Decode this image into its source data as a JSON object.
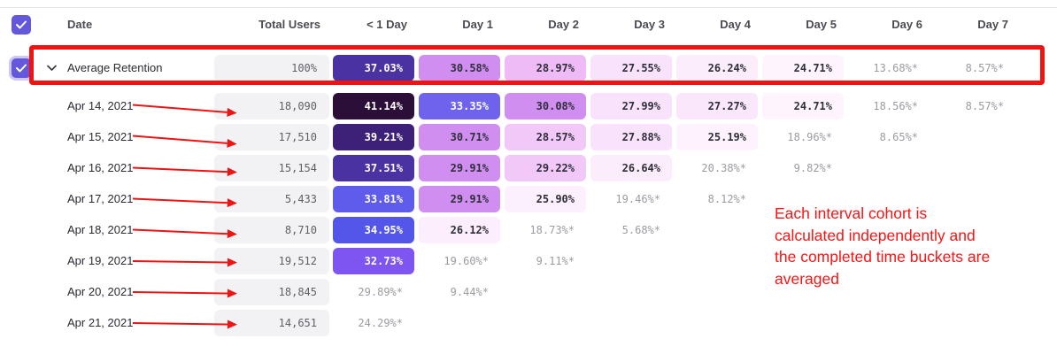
{
  "colors": {
    "accent_purple": "#6358dc",
    "annotation_red": "#ee1414",
    "total_cell_bg": "#f2f2f4"
  },
  "table": {
    "headers": [
      "Date",
      "Total Users",
      "< 1 Day",
      "Day 1",
      "Day 2",
      "Day 3",
      "Day 4",
      "Day 5",
      "Day 6",
      "Day 7"
    ],
    "average_row": {
      "label": "Average Retention",
      "total": "100%",
      "cells": [
        {
          "v": "37.03%",
          "bg": "#4a32a2",
          "t": "light"
        },
        {
          "v": "30.58%",
          "bg": "#d18ef1",
          "t": "dark"
        },
        {
          "v": "28.97%",
          "bg": "#eebbf7",
          "t": "dark"
        },
        {
          "v": "27.55%",
          "bg": "#f9e2fb",
          "t": "dark"
        },
        {
          "v": "26.24%",
          "bg": "#fcedfd",
          "t": "dark"
        },
        {
          "v": "24.71%",
          "bg": "#fdf4fe",
          "t": "dark"
        },
        {
          "v": "13.68%*",
          "t": "gray"
        },
        {
          "v": "8.57%*",
          "t": "gray"
        }
      ]
    },
    "rows": [
      {
        "date": "Apr 14, 2021",
        "total": "18,090",
        "cells": [
          {
            "v": "41.14%",
            "bg": "#2b0f38",
            "t": "light"
          },
          {
            "v": "33.35%",
            "bg": "#6f63ee",
            "t": "light"
          },
          {
            "v": "30.08%",
            "bg": "#d18ef1",
            "t": "dark"
          },
          {
            "v": "27.99%",
            "bg": "#f9e2fb",
            "t": "dark"
          },
          {
            "v": "27.27%",
            "bg": "#fae7fc",
            "t": "dark"
          },
          {
            "v": "24.71%",
            "bg": "#fdf4fe",
            "t": "dark"
          },
          {
            "v": "18.56%*",
            "t": "gray"
          },
          {
            "v": "8.57%*",
            "t": "gray"
          }
        ]
      },
      {
        "date": "Apr 15, 2021",
        "total": "17,510",
        "cells": [
          {
            "v": "39.21%",
            "bg": "#3d2078",
            "t": "light"
          },
          {
            "v": "30.71%",
            "bg": "#d18ef1",
            "t": "dark"
          },
          {
            "v": "28.57%",
            "bg": "#f2c8f9",
            "t": "dark"
          },
          {
            "v": "27.88%",
            "bg": "#f9e2fb",
            "t": "dark"
          },
          {
            "v": "25.19%",
            "bg": "#fdf2fe",
            "t": "dark"
          },
          {
            "v": "18.96%*",
            "t": "gray"
          },
          {
            "v": "8.65%*",
            "t": "gray"
          },
          null
        ]
      },
      {
        "date": "Apr 16, 2021",
        "total": "15,154",
        "cells": [
          {
            "v": "37.51%",
            "bg": "#4a32a2",
            "t": "light"
          },
          {
            "v": "29.91%",
            "bg": "#d18ef1",
            "t": "dark"
          },
          {
            "v": "29.22%",
            "bg": "#f2c8f9",
            "t": "dark"
          },
          {
            "v": "26.64%",
            "bg": "#fcedfd",
            "t": "dark"
          },
          {
            "v": "20.38%*",
            "t": "gray"
          },
          {
            "v": "9.82%*",
            "t": "gray"
          },
          null,
          null
        ]
      },
      {
        "date": "Apr 17, 2021",
        "total": "5,433",
        "cells": [
          {
            "v": "33.81%",
            "bg": "#5f5ceb",
            "t": "light"
          },
          {
            "v": "29.91%",
            "bg": "#d18ef1",
            "t": "dark"
          },
          {
            "v": "25.90%",
            "bg": "#fdf0fe",
            "t": "dark"
          },
          {
            "v": "19.46%*",
            "t": "gray"
          },
          {
            "v": "8.12%*",
            "t": "gray"
          },
          null,
          null,
          null
        ]
      },
      {
        "date": "Apr 18, 2021",
        "total": "8,710",
        "cells": [
          {
            "v": "34.95%",
            "bg": "#5356e8",
            "t": "light"
          },
          {
            "v": "26.12%",
            "bg": "#fdeefe",
            "t": "dark"
          },
          {
            "v": "18.73%*",
            "t": "gray"
          },
          {
            "v": "5.68%*",
            "t": "gray"
          },
          null,
          null,
          null,
          null
        ]
      },
      {
        "date": "Apr 19, 2021",
        "total": "19,512",
        "cells": [
          {
            "v": "32.73%",
            "bg": "#7e55f1",
            "t": "light"
          },
          {
            "v": "19.60%*",
            "t": "gray"
          },
          {
            "v": "9.11%*",
            "t": "gray"
          },
          null,
          null,
          null,
          null,
          null
        ]
      },
      {
        "date": "Apr 20, 2021",
        "total": "18,845",
        "cells": [
          {
            "v": "29.89%*",
            "t": "gray"
          },
          {
            "v": "9.44%*",
            "t": "gray"
          },
          null,
          null,
          null,
          null,
          null,
          null
        ]
      },
      {
        "date": "Apr 21, 2021",
        "total": "14,651",
        "cells": [
          {
            "v": "24.29%*",
            "t": "gray"
          },
          null,
          null,
          null,
          null,
          null,
          null,
          null
        ]
      }
    ]
  },
  "annotations": {
    "note_lines": [
      "Each interval cohort is",
      "calculated independently and",
      "the completed time buckets are",
      "averaged"
    ]
  }
}
